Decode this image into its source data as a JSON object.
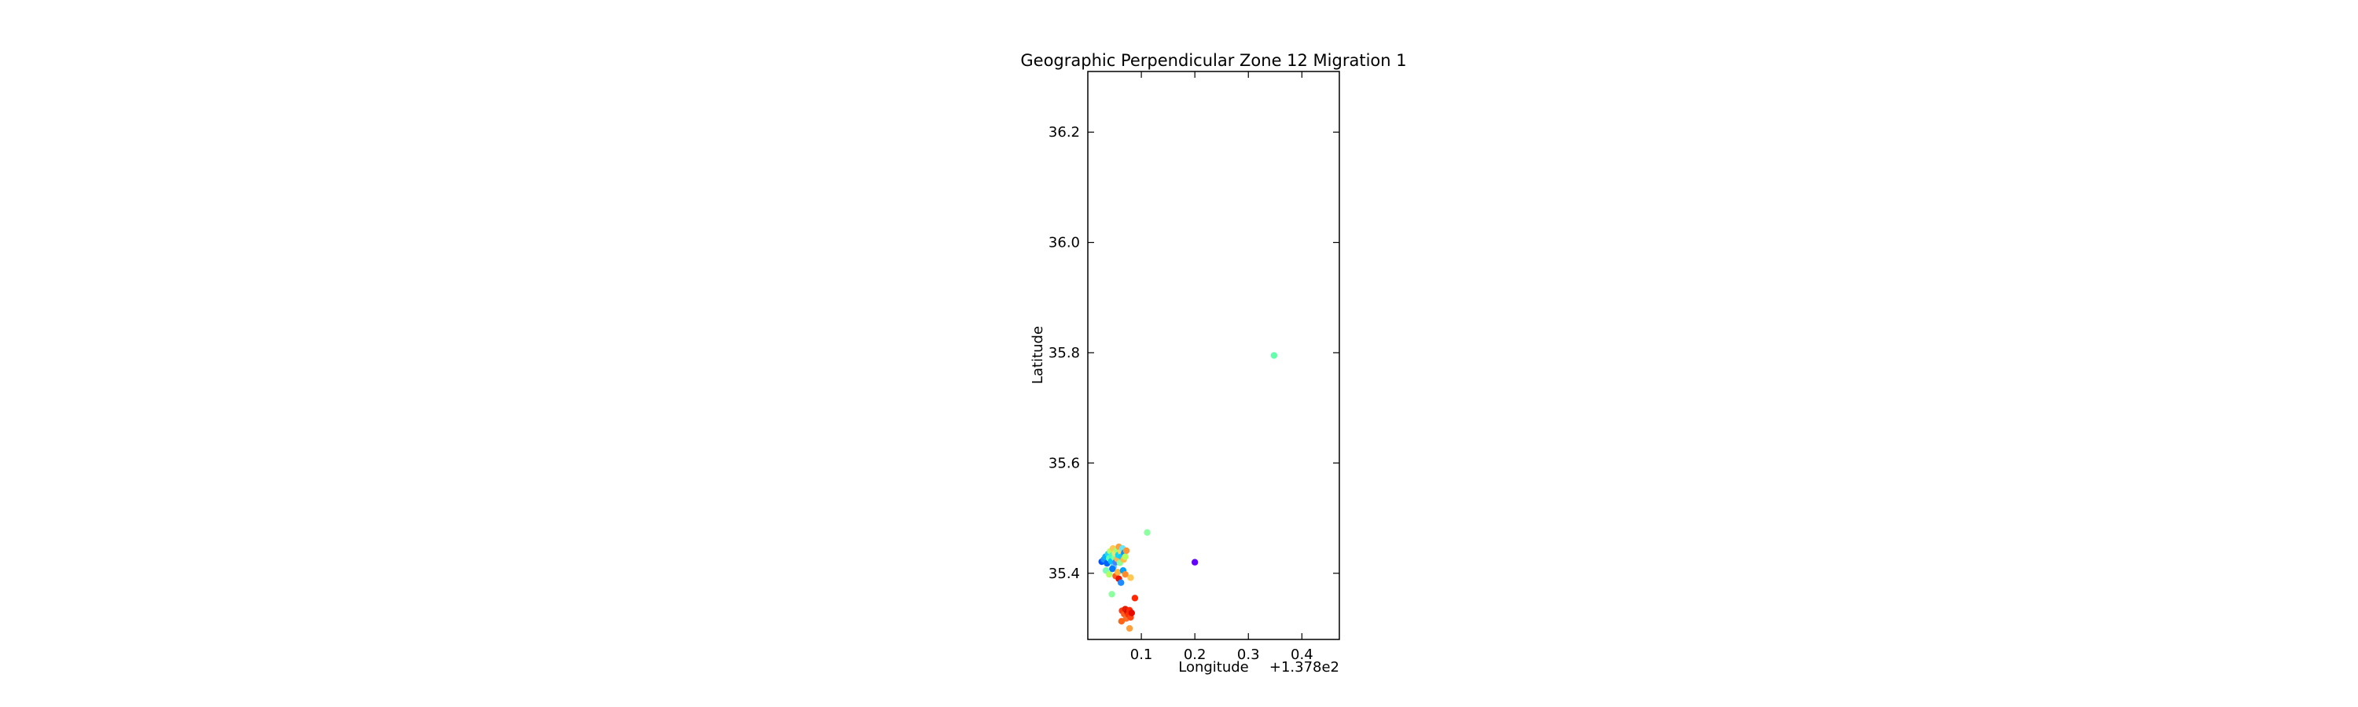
{
  "chart_data": {
    "type": "scatter",
    "title": "Geographic Perpendicular Zone 12 Migration 1",
    "xlabel": "Longitude",
    "ylabel": "Latitude",
    "x_offset_label": "+1.378e2",
    "xlim": [
      137.8,
      138.27
    ],
    "ylim": [
      35.28,
      36.31
    ],
    "x_ticks": [
      137.9,
      138.0,
      138.1,
      138.2
    ],
    "x_tick_labels": [
      "0.1",
      "0.2",
      "0.3",
      "0.4"
    ],
    "y_ticks": [
      35.4,
      35.6,
      35.8,
      36.0,
      36.2
    ],
    "y_tick_labels": [
      "35.4",
      "35.6",
      "35.8",
      "36.0",
      "36.2"
    ],
    "grid": false,
    "colormap": "jet",
    "points": [
      {
        "x": 137.826,
        "y": 35.421,
        "color": "#0050ff"
      },
      {
        "x": 137.83,
        "y": 35.425,
        "color": "#1e90ff"
      },
      {
        "x": 137.833,
        "y": 35.43,
        "color": "#00b4ff"
      },
      {
        "x": 137.836,
        "y": 35.418,
        "color": "#0064ff"
      },
      {
        "x": 137.838,
        "y": 35.435,
        "color": "#28d2ff"
      },
      {
        "x": 137.84,
        "y": 35.427,
        "color": "#64ffaa"
      },
      {
        "x": 137.842,
        "y": 35.44,
        "color": "#b4ff64"
      },
      {
        "x": 137.844,
        "y": 35.422,
        "color": "#00c8ff"
      },
      {
        "x": 137.845,
        "y": 35.432,
        "color": "#3cffc8"
      },
      {
        "x": 137.847,
        "y": 35.445,
        "color": "#ffc850"
      },
      {
        "x": 137.848,
        "y": 35.412,
        "color": "#5ac8ff"
      },
      {
        "x": 137.85,
        "y": 35.428,
        "color": "#7dffa0"
      },
      {
        "x": 137.851,
        "y": 35.436,
        "color": "#ffdc64"
      },
      {
        "x": 137.852,
        "y": 35.42,
        "color": "#4682ff"
      },
      {
        "x": 137.854,
        "y": 35.442,
        "color": "#a0ff78"
      },
      {
        "x": 137.855,
        "y": 35.426,
        "color": "#ffb450"
      },
      {
        "x": 137.857,
        "y": 35.433,
        "color": "#00dcff"
      },
      {
        "x": 137.858,
        "y": 35.448,
        "color": "#ffa03c"
      },
      {
        "x": 137.86,
        "y": 35.419,
        "color": "#8cff96"
      },
      {
        "x": 137.862,
        "y": 35.439,
        "color": "#ffd25a"
      },
      {
        "x": 137.863,
        "y": 35.43,
        "color": "#1ebeff"
      },
      {
        "x": 137.865,
        "y": 35.445,
        "color": "#64e6ff"
      },
      {
        "x": 137.867,
        "y": 35.425,
        "color": "#ffbe46"
      },
      {
        "x": 137.868,
        "y": 35.437,
        "color": "#0096ff"
      },
      {
        "x": 137.87,
        "y": 35.43,
        "color": "#b4ff5a"
      },
      {
        "x": 137.872,
        "y": 35.441,
        "color": "#ff9632"
      },
      {
        "x": 137.834,
        "y": 35.405,
        "color": "#78ffb4"
      },
      {
        "x": 137.84,
        "y": 35.398,
        "color": "#b4ff64"
      },
      {
        "x": 137.846,
        "y": 35.408,
        "color": "#0078ff"
      },
      {
        "x": 137.852,
        "y": 35.395,
        "color": "#ff5a1e"
      },
      {
        "x": 137.856,
        "y": 35.402,
        "color": "#ffb43c"
      },
      {
        "x": 137.858,
        "y": 35.39,
        "color": "#e61400"
      },
      {
        "x": 137.862,
        "y": 35.383,
        "color": "#1e8cff"
      },
      {
        "x": 137.866,
        "y": 35.405,
        "color": "#00a0ff"
      },
      {
        "x": 137.87,
        "y": 35.398,
        "color": "#ff8c28"
      },
      {
        "x": 137.88,
        "y": 35.392,
        "color": "#ffc850"
      },
      {
        "x": 137.845,
        "y": 35.362,
        "color": "#8cffa0"
      },
      {
        "x": 137.864,
        "y": 35.332,
        "color": "#ff3c14"
      },
      {
        "x": 137.868,
        "y": 35.326,
        "color": "#ff5a1e"
      },
      {
        "x": 137.87,
        "y": 35.335,
        "color": "#e61e00"
      },
      {
        "x": 137.872,
        "y": 35.318,
        "color": "#ff6e28"
      },
      {
        "x": 137.874,
        "y": 35.33,
        "color": "#d21400"
      },
      {
        "x": 137.876,
        "y": 35.325,
        "color": "#ff3200"
      },
      {
        "x": 137.878,
        "y": 35.333,
        "color": "#ff2800"
      },
      {
        "x": 137.88,
        "y": 35.32,
        "color": "#ff4614"
      },
      {
        "x": 137.882,
        "y": 35.328,
        "color": "#e60a00"
      },
      {
        "x": 137.863,
        "y": 35.313,
        "color": "#ff6414"
      },
      {
        "x": 137.878,
        "y": 35.3,
        "color": "#ffa03c"
      },
      {
        "x": 137.888,
        "y": 35.355,
        "color": "#ff2800"
      },
      {
        "x": 137.911,
        "y": 35.474,
        "color": "#8cffa0"
      },
      {
        "x": 138.0,
        "y": 35.42,
        "color": "#6400ff"
      },
      {
        "x": 138.148,
        "y": 35.795,
        "color": "#64ffaa"
      }
    ]
  }
}
